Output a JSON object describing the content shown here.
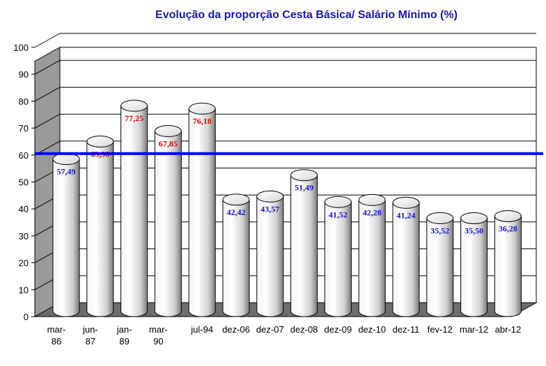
{
  "chart_data": {
    "type": "bar",
    "title": "Evolução da proporção Cesta Básica/ Salário Mínimo (%)",
    "categories": [
      [
        "mar-",
        "86"
      ],
      [
        "jun-",
        "87"
      ],
      [
        "jan-",
        "89"
      ],
      [
        "mar-",
        "90"
      ],
      [
        "jul-94"
      ],
      [
        "dez-06"
      ],
      [
        "dez-07"
      ],
      [
        "dez-08"
      ],
      [
        "dez-09"
      ],
      [
        "dez-10"
      ],
      [
        "dez-11"
      ],
      [
        "fev-12"
      ],
      [
        "mar-12"
      ],
      [
        "abr-12"
      ]
    ],
    "values": [
      57.49,
      63.98,
      77.25,
      67.85,
      76.18,
      42.42,
      43.57,
      51.49,
      41.52,
      42.28,
      41.24,
      35.52,
      35.5,
      36.28
    ],
    "value_labels": [
      "57,49",
      "63,98",
      "77,25",
      "67,85",
      "76,18",
      "42,42",
      "43,57",
      "51,49",
      "41,52",
      "42,28",
      "41,24",
      "35,52",
      "35,50",
      "36,28"
    ],
    "ylim": [
      0,
      100
    ],
    "yticks": [
      "0",
      "10",
      "20",
      "30",
      "40",
      "50",
      "60",
      "70",
      "80",
      "90",
      "100"
    ],
    "reference_line": 60,
    "grid": true,
    "legend": "none",
    "colors": {
      "title": "#1a1aa6",
      "label_above": "#e00000",
      "label_below": "#1414c8",
      "reference_line": "#0000ff",
      "bar_light": "#ffffff",
      "bar_shade": "#7a7a7a",
      "floor": "#6e6e6e",
      "back_wall": "#ffffff",
      "side_wall": "#9a9a9a"
    }
  }
}
